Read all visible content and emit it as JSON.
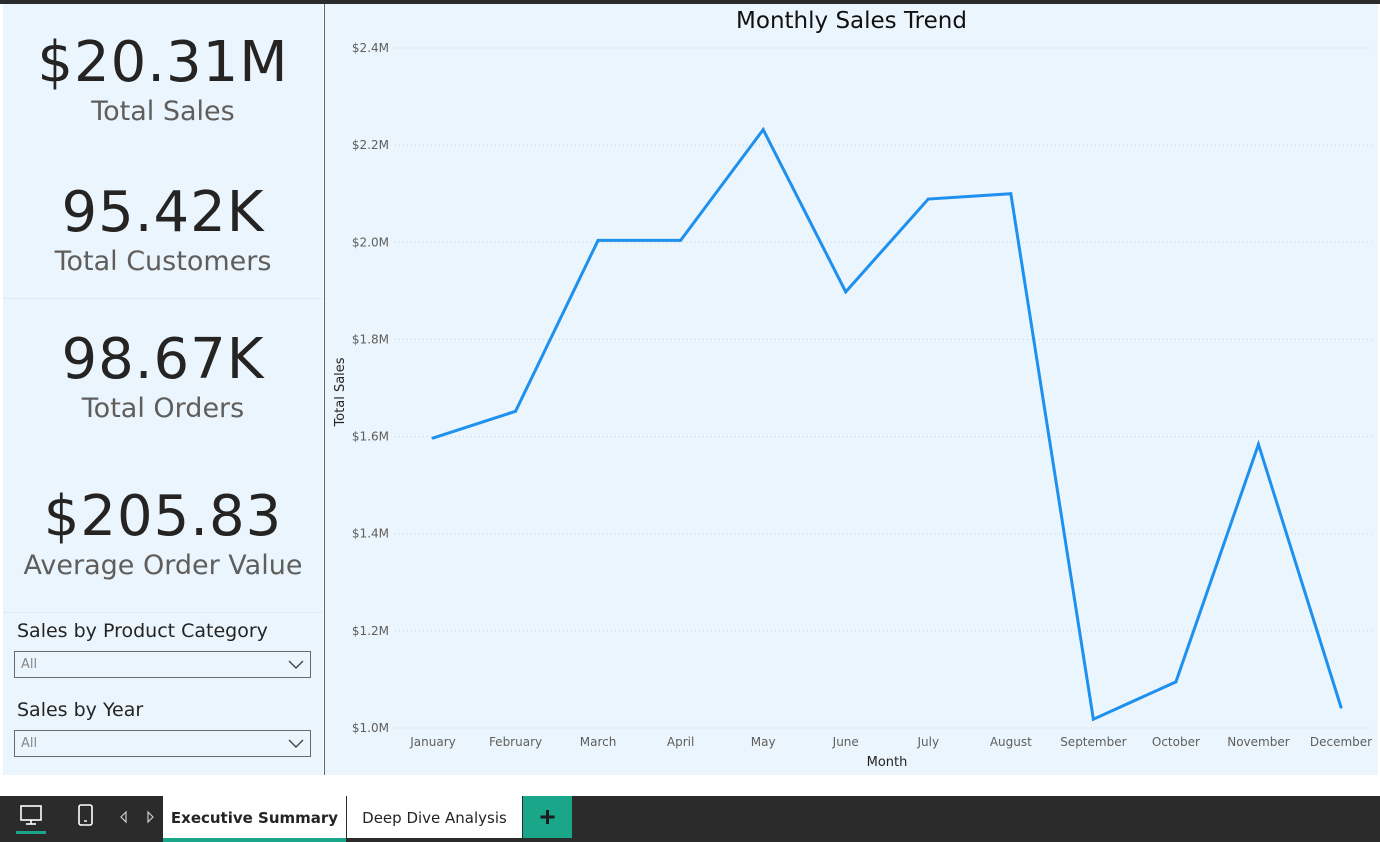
{
  "kpis": [
    {
      "value": "$20.31M",
      "label": "Total Sales"
    },
    {
      "value": "95.42K",
      "label": "Total Customers"
    },
    {
      "value": "98.67K",
      "label": "Total Orders"
    },
    {
      "value": "$205.83",
      "label": "Average Order Value"
    }
  ],
  "slicers": [
    {
      "title": "Sales by Product Category",
      "selected": "All"
    },
    {
      "title": "Sales by Year",
      "selected": "All"
    }
  ],
  "tabs": [
    {
      "label": "Executive Summary",
      "active": true
    },
    {
      "label": "Deep Dive Analysis",
      "active": false
    }
  ],
  "icons": {
    "desktop_view": "monitor-icon",
    "mobile_view": "phone-icon",
    "prev": "triangle-left-icon",
    "next": "triangle-right-icon",
    "add_page": "plus-icon"
  },
  "colors": {
    "line": "#1e90ee",
    "accent": "#1aa689",
    "panel_bg": "#eaf5fd"
  },
  "chart_data": {
    "type": "line",
    "title": "Monthly Sales Trend",
    "xlabel": "Month",
    "ylabel": "Total Sales",
    "categories": [
      "January",
      "February",
      "March",
      "April",
      "May",
      "June",
      "July",
      "August",
      "September",
      "October",
      "November",
      "December"
    ],
    "series": [
      {
        "values": [
          1.597,
          1.652,
          2.004,
          2.004,
          2.232,
          1.898,
          2.089,
          2.1,
          1.018,
          1.095,
          1.584,
          1.043
        ]
      }
    ],
    "yticks": [
      "$1.0M",
      "$1.2M",
      "$1.4M",
      "$1.6M",
      "$1.8M",
      "$2.0M",
      "$2.2M",
      "$2.4M"
    ],
    "ylim": [
      1.0,
      2.4
    ],
    "unit": "millions USD",
    "grid": true
  }
}
